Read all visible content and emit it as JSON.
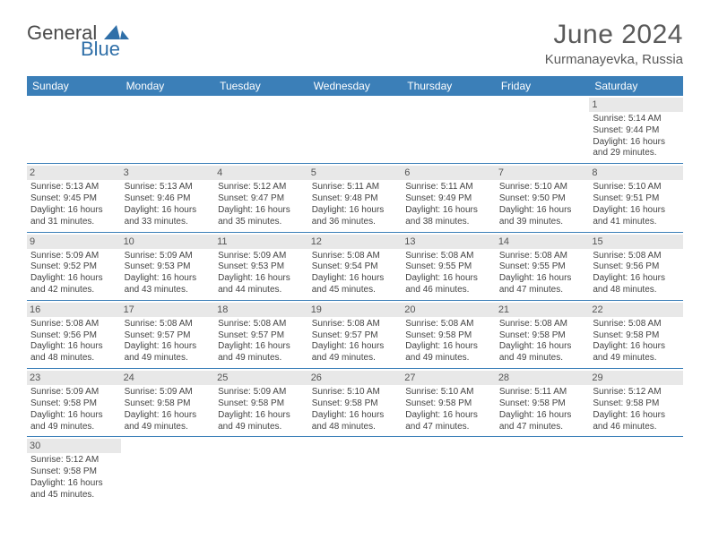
{
  "logo": {
    "text1": "General",
    "text2": "Blue",
    "sail_color": "#2f6fa8"
  },
  "title": "June 2024",
  "location": "Kurmanayevka, Russia",
  "colors": {
    "header_bg": "#3b7fb8",
    "header_text": "#ffffff",
    "daynum_bg": "#e8e8e8",
    "border": "#3b7fb8",
    "text": "#444444"
  },
  "weekdays": [
    "Sunday",
    "Monday",
    "Tuesday",
    "Wednesday",
    "Thursday",
    "Friday",
    "Saturday"
  ],
  "weeks": [
    [
      null,
      null,
      null,
      null,
      null,
      null,
      {
        "n": "1",
        "sr": "5:14 AM",
        "ss": "9:44 PM",
        "dl": "16 hours and 29 minutes."
      }
    ],
    [
      {
        "n": "2",
        "sr": "5:13 AM",
        "ss": "9:45 PM",
        "dl": "16 hours and 31 minutes."
      },
      {
        "n": "3",
        "sr": "5:13 AM",
        "ss": "9:46 PM",
        "dl": "16 hours and 33 minutes."
      },
      {
        "n": "4",
        "sr": "5:12 AM",
        "ss": "9:47 PM",
        "dl": "16 hours and 35 minutes."
      },
      {
        "n": "5",
        "sr": "5:11 AM",
        "ss": "9:48 PM",
        "dl": "16 hours and 36 minutes."
      },
      {
        "n": "6",
        "sr": "5:11 AM",
        "ss": "9:49 PM",
        "dl": "16 hours and 38 minutes."
      },
      {
        "n": "7",
        "sr": "5:10 AM",
        "ss": "9:50 PM",
        "dl": "16 hours and 39 minutes."
      },
      {
        "n": "8",
        "sr": "5:10 AM",
        "ss": "9:51 PM",
        "dl": "16 hours and 41 minutes."
      }
    ],
    [
      {
        "n": "9",
        "sr": "5:09 AM",
        "ss": "9:52 PM",
        "dl": "16 hours and 42 minutes."
      },
      {
        "n": "10",
        "sr": "5:09 AM",
        "ss": "9:53 PM",
        "dl": "16 hours and 43 minutes."
      },
      {
        "n": "11",
        "sr": "5:09 AM",
        "ss": "9:53 PM",
        "dl": "16 hours and 44 minutes."
      },
      {
        "n": "12",
        "sr": "5:08 AM",
        "ss": "9:54 PM",
        "dl": "16 hours and 45 minutes."
      },
      {
        "n": "13",
        "sr": "5:08 AM",
        "ss": "9:55 PM",
        "dl": "16 hours and 46 minutes."
      },
      {
        "n": "14",
        "sr": "5:08 AM",
        "ss": "9:55 PM",
        "dl": "16 hours and 47 minutes."
      },
      {
        "n": "15",
        "sr": "5:08 AM",
        "ss": "9:56 PM",
        "dl": "16 hours and 48 minutes."
      }
    ],
    [
      {
        "n": "16",
        "sr": "5:08 AM",
        "ss": "9:56 PM",
        "dl": "16 hours and 48 minutes."
      },
      {
        "n": "17",
        "sr": "5:08 AM",
        "ss": "9:57 PM",
        "dl": "16 hours and 49 minutes."
      },
      {
        "n": "18",
        "sr": "5:08 AM",
        "ss": "9:57 PM",
        "dl": "16 hours and 49 minutes."
      },
      {
        "n": "19",
        "sr": "5:08 AM",
        "ss": "9:57 PM",
        "dl": "16 hours and 49 minutes."
      },
      {
        "n": "20",
        "sr": "5:08 AM",
        "ss": "9:58 PM",
        "dl": "16 hours and 49 minutes."
      },
      {
        "n": "21",
        "sr": "5:08 AM",
        "ss": "9:58 PM",
        "dl": "16 hours and 49 minutes."
      },
      {
        "n": "22",
        "sr": "5:08 AM",
        "ss": "9:58 PM",
        "dl": "16 hours and 49 minutes."
      }
    ],
    [
      {
        "n": "23",
        "sr": "5:09 AM",
        "ss": "9:58 PM",
        "dl": "16 hours and 49 minutes."
      },
      {
        "n": "24",
        "sr": "5:09 AM",
        "ss": "9:58 PM",
        "dl": "16 hours and 49 minutes."
      },
      {
        "n": "25",
        "sr": "5:09 AM",
        "ss": "9:58 PM",
        "dl": "16 hours and 49 minutes."
      },
      {
        "n": "26",
        "sr": "5:10 AM",
        "ss": "9:58 PM",
        "dl": "16 hours and 48 minutes."
      },
      {
        "n": "27",
        "sr": "5:10 AM",
        "ss": "9:58 PM",
        "dl": "16 hours and 47 minutes."
      },
      {
        "n": "28",
        "sr": "5:11 AM",
        "ss": "9:58 PM",
        "dl": "16 hours and 47 minutes."
      },
      {
        "n": "29",
        "sr": "5:12 AM",
        "ss": "9:58 PM",
        "dl": "16 hours and 46 minutes."
      }
    ],
    [
      {
        "n": "30",
        "sr": "5:12 AM",
        "ss": "9:58 PM",
        "dl": "16 hours and 45 minutes."
      },
      null,
      null,
      null,
      null,
      null,
      null
    ]
  ],
  "labels": {
    "sunrise": "Sunrise:",
    "sunset": "Sunset:",
    "daylight": "Daylight:"
  }
}
